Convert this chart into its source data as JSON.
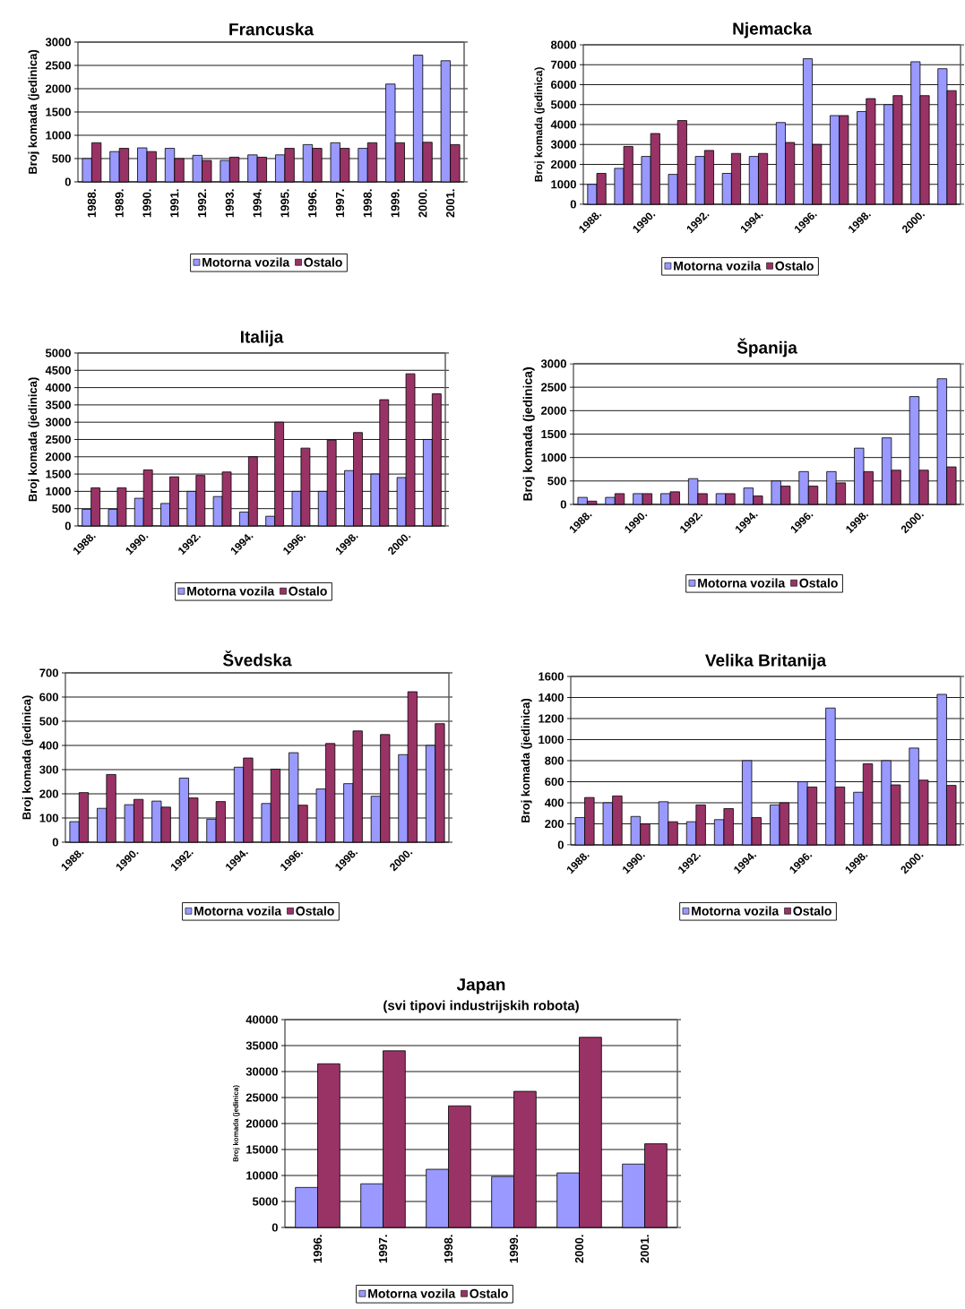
{
  "chart_data": [
    {
      "type": "bar",
      "title": "Francuska",
      "ylabel": "Broj komada (jedinica)",
      "categories": [
        "1988.",
        "1989.",
        "1990.",
        "1991.",
        "1992.",
        "1993.",
        "1994.",
        "1995.",
        "1996.",
        "1997.",
        "1998.",
        "1999.",
        "2000.",
        "2001."
      ],
      "series": [
        {
          "name": "Motorna vozila",
          "color": "#9999ff",
          "values": [
            500,
            650,
            730,
            720,
            570,
            460,
            580,
            580,
            800,
            840,
            720,
            2100,
            2720,
            2600
          ]
        },
        {
          "name": "Ostalo",
          "color": "#993366",
          "values": [
            840,
            720,
            650,
            500,
            460,
            530,
            530,
            720,
            720,
            720,
            840,
            840,
            850,
            800
          ]
        }
      ],
      "ylim": [
        0,
        3000
      ],
      "yticks": [
        0,
        500,
        1000,
        1500,
        2000,
        2500,
        3000
      ],
      "grid": "y",
      "legend": "bottom"
    },
    {
      "type": "bar",
      "title": "Njemacka",
      "ylabel": "Broj komada (jedinica)",
      "categories": [
        "1988.",
        null,
        "1990.",
        null,
        "1992.",
        null,
        "1994.",
        null,
        "1996.",
        null,
        "1998.",
        null,
        "2000.",
        null
      ],
      "series": [
        {
          "name": "Motorna vozila",
          "color": "#9999ff",
          "values": [
            1000,
            1800,
            2400,
            1500,
            2400,
            1550,
            2400,
            4100,
            7300,
            4450,
            4650,
            5000,
            7150,
            6800
          ]
        },
        {
          "name": "Ostalo",
          "color": "#993366",
          "values": [
            1550,
            2900,
            3550,
            4200,
            2700,
            2550,
            2550,
            3100,
            3000,
            4450,
            5300,
            5450,
            5450,
            5700
          ]
        }
      ],
      "ylim": [
        0,
        8000
      ],
      "yticks": [
        0,
        1000,
        2000,
        3000,
        4000,
        5000,
        6000,
        7000,
        8000
      ],
      "grid": "y",
      "legend": "bottom"
    },
    {
      "type": "bar",
      "title": "Italija",
      "ylabel": "Broj komada (jedinica)",
      "categories": [
        "1988.",
        null,
        "1990.",
        null,
        "1992.",
        null,
        "1994.",
        null,
        "1996.",
        null,
        "1998.",
        null,
        "2000.",
        null
      ],
      "series": [
        {
          "name": "Motorna vozila",
          "color": "#9999ff",
          "values": [
            480,
            480,
            800,
            650,
            1000,
            850,
            400,
            280,
            1000,
            1000,
            1600,
            1500,
            1400,
            2500
          ]
        },
        {
          "name": "Ostalo",
          "color": "#993366",
          "values": [
            1100,
            1100,
            1620,
            1420,
            1460,
            1560,
            2000,
            3000,
            2250,
            2480,
            2700,
            3650,
            4400,
            3820
          ]
        }
      ],
      "ylim": [
        0,
        5000
      ],
      "yticks": [
        0,
        500,
        1000,
        1500,
        2000,
        2500,
        3000,
        3500,
        4000,
        4500,
        5000
      ],
      "grid": "y",
      "legend": "bottom"
    },
    {
      "type": "bar",
      "title": "Španija",
      "ylabel": "Broj komada (jedinica)",
      "categories": [
        "1988.",
        null,
        "1990.",
        null,
        "1992.",
        null,
        "1994.",
        null,
        "1996.",
        null,
        "1998.",
        null,
        "2000.",
        null
      ],
      "series": [
        {
          "name": "Motorna vozila",
          "color": "#9999ff",
          "values": [
            150,
            150,
            230,
            230,
            550,
            230,
            350,
            500,
            700,
            700,
            1200,
            1420,
            2300,
            2680
          ]
        },
        {
          "name": "Ostalo",
          "color": "#993366",
          "values": [
            70,
            230,
            230,
            270,
            230,
            230,
            180,
            390,
            390,
            460,
            700,
            730,
            730,
            800
          ]
        }
      ],
      "ylim": [
        0,
        3000
      ],
      "yticks": [
        0,
        500,
        1000,
        1500,
        2000,
        2500,
        3000
      ],
      "grid": "y",
      "legend": "bottom"
    },
    {
      "type": "bar",
      "title": "Švedska",
      "ylabel": "Broj komada (jedinica)",
      "categories": [
        "1988.",
        null,
        "1990.",
        null,
        "1992.",
        null,
        "1994.",
        null,
        "1996.",
        null,
        "1998.",
        null,
        "2000.",
        null
      ],
      "series": [
        {
          "name": "Motorna vozila",
          "color": "#9999ff",
          "values": [
            85,
            140,
            155,
            170,
            265,
            95,
            310,
            160,
            370,
            220,
            242,
            190,
            362,
            400
          ]
        },
        {
          "name": "Ostalo",
          "color": "#993366",
          "values": [
            205,
            280,
            177,
            145,
            183,
            168,
            348,
            302,
            153,
            408,
            460,
            445,
            622,
            490
          ]
        }
      ],
      "ylim": [
        0,
        700
      ],
      "yticks": [
        0,
        100,
        200,
        300,
        400,
        500,
        600,
        700
      ],
      "grid": "y",
      "legend": "bottom"
    },
    {
      "type": "bar",
      "title": "Velika Britanija",
      "ylabel": "Broj komada (jedinica)",
      "categories": [
        "1988.",
        null,
        "1990.",
        null,
        "1992.",
        null,
        "1994.",
        null,
        "1996.",
        null,
        "1998.",
        null,
        "2000.",
        null
      ],
      "series": [
        {
          "name": "Motorna vozila",
          "color": "#9999ff",
          "values": [
            260,
            400,
            270,
            410,
            220,
            240,
            800,
            380,
            600,
            1300,
            500,
            800,
            920,
            1430
          ]
        },
        {
          "name": "Ostalo",
          "color": "#993366",
          "values": [
            450,
            465,
            200,
            220,
            380,
            345,
            260,
            400,
            550,
            550,
            770,
            570,
            615,
            565
          ]
        }
      ],
      "ylim": [
        0,
        1600
      ],
      "yticks": [
        0,
        200,
        400,
        600,
        800,
        1000,
        1200,
        1400,
        1600
      ],
      "grid": "y",
      "legend": "bottom"
    },
    {
      "type": "bar",
      "title": "Japan",
      "subtitle": "(svi tipovi industrijskih robota)",
      "ylabel": "Broj komada (jedinica)",
      "categories": [
        "1996.",
        "1997.",
        "1998.",
        "1999.",
        "2000.",
        "2001."
      ],
      "series": [
        {
          "name": "Motorna vozila",
          "color": "#9999ff",
          "values": [
            7700,
            8400,
            11200,
            9800,
            10500,
            12200
          ]
        },
        {
          "name": "Ostalo",
          "color": "#993366",
          "values": [
            31500,
            34000,
            23400,
            26200,
            36600,
            16100
          ]
        }
      ],
      "ylim": [
        0,
        40000
      ],
      "yticks": [
        0,
        5000,
        10000,
        15000,
        20000,
        25000,
        30000,
        35000,
        40000
      ],
      "grid": "y",
      "legend": "bottom"
    }
  ]
}
